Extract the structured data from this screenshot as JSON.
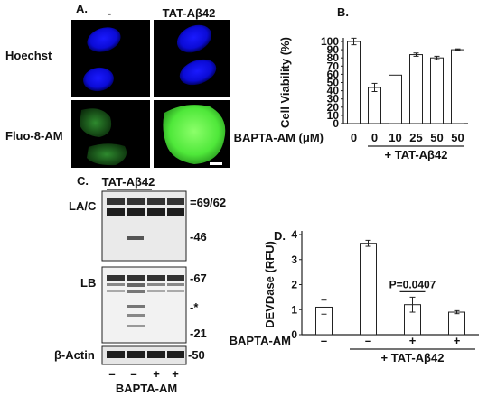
{
  "panel_a": {
    "letter": "A.",
    "col_headers": [
      "-",
      "TAT-Aβ42"
    ],
    "row_labels": [
      "Hoechst",
      "Fluo-8-AM"
    ]
  },
  "panel_c": {
    "letter": "C.",
    "treatment_header": "TAT-Aβ42",
    "blot_labels": [
      "LA/C",
      "LB",
      "β-Actin"
    ],
    "markers": [
      "=69/62",
      "-46",
      "-67",
      "-*",
      "-21",
      "-50"
    ],
    "lane_signs": [
      "–",
      "–",
      "+",
      "+"
    ],
    "bottom_label": "BAPTA-AM"
  },
  "chart_data": [
    {
      "panel": "B.",
      "type": "bar",
      "ylabel": "Cell Viability (%)",
      "ylim": [
        0,
        100
      ],
      "yticks": [
        "0",
        "10",
        "20",
        "30",
        "40",
        "50",
        "60",
        "70",
        "80",
        "90",
        "100"
      ],
      "row_label": "BAPTA-AM (μM)",
      "categories": [
        "0",
        "0",
        "10",
        "25",
        "50",
        "50"
      ],
      "values": [
        100,
        44,
        59,
        84,
        80,
        90
      ],
      "errors": [
        4,
        5,
        0,
        2,
        2,
        1
      ],
      "group_label": "+ TAT-Aβ42"
    },
    {
      "panel": "D.",
      "type": "bar",
      "ylabel": "DEVDase (RFU)",
      "ylim": [
        0,
        4
      ],
      "yticks": [
        "0",
        "1",
        "2",
        "3",
        "4"
      ],
      "row_label": "BAPTA-AM",
      "categories": [
        "–",
        "–",
        "+",
        "+"
      ],
      "values": [
        1.1,
        3.65,
        1.2,
        0.9
      ],
      "errors": [
        0.28,
        0.12,
        0.3,
        0.06
      ],
      "group_label": "+ TAT-Aβ42",
      "annotation": "P=0.0407"
    }
  ]
}
